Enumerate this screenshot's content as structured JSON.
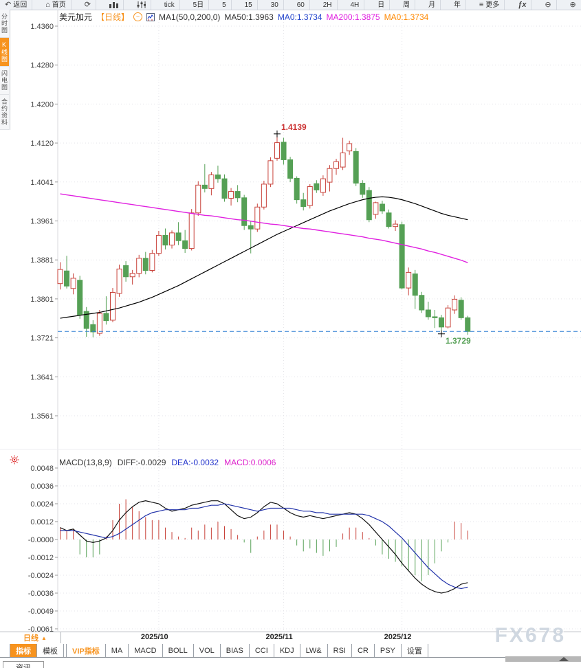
{
  "icons": {
    "back": "↶",
    "home": "⌂",
    "refresh": "⟳",
    "more": "≡",
    "fx": "ƒx",
    "zoom_out": "⊖",
    "zoom_in": "⊕",
    "collapse": "⊖",
    "period_arrow": "▲"
  },
  "toolbar": {
    "back": "返回",
    "home": "首页",
    "tick": "tick",
    "periods": [
      "5日",
      "5",
      "15",
      "30",
      "60",
      "2H",
      "4H",
      "日",
      "周",
      "月",
      "年"
    ],
    "more": "更多"
  },
  "sidebar": {
    "items": [
      {
        "label": "分时图",
        "active": false
      },
      {
        "label": "K线图",
        "active": true
      },
      {
        "label": "闪电图",
        "active": false
      },
      {
        "label": "合约资料",
        "active": false
      }
    ]
  },
  "main_header": {
    "symbol": "美元加元",
    "period_tag": "【日线】",
    "ma_config": "MA1(50,0,200,0)",
    "ma50": "MA50:1.3963",
    "ma0_blue": "MA0:1.3734",
    "ma200": "MA200:1.3875",
    "ma0_orange": "MA0:1.3734"
  },
  "macd_header": {
    "config": "MACD(13,8,9)",
    "diff": "DIFF:-0.0029",
    "dea": "DEA:-0.0032",
    "macd": "MACD:0.0006"
  },
  "bottom": {
    "period_button": "日线",
    "tabs": [
      {
        "label": "指标",
        "state": "active"
      },
      {
        "label": "模板",
        "state": ""
      },
      {
        "label": "VIP指标",
        "state": "vip"
      },
      {
        "label": "MA",
        "state": ""
      },
      {
        "label": "MACD",
        "state": ""
      },
      {
        "label": "BOLL",
        "state": ""
      },
      {
        "label": "VOL",
        "state": ""
      },
      {
        "label": "BIAS",
        "state": ""
      },
      {
        "label": "CCI",
        "state": ""
      },
      {
        "label": "KDJ",
        "state": ""
      },
      {
        "label": "LW&",
        "state": ""
      },
      {
        "label": "RSI",
        "state": ""
      },
      {
        "label": "CR",
        "state": ""
      },
      {
        "label": "PSY",
        "state": ""
      },
      {
        "label": "设置",
        "state": ""
      }
    ],
    "news_tab": "资讯",
    "watermark": "FX678"
  },
  "colors": {
    "accent": "#f7931e",
    "up": "#c8423a",
    "down": "#55a055",
    "ma50": "#000000",
    "ma200": "#e020e0",
    "diff": "#111111",
    "dea": "#2233aa",
    "price_line": "#2f7fd4",
    "grid": "#e3e3e8",
    "axis_text": "#444444",
    "high_label": "#cc3333",
    "low_label": "#55a055"
  },
  "chart_data": [
    {
      "type": "candlestick",
      "title": "美元加元 日线",
      "ylim": [
        1.3561,
        1.436
      ],
      "y_ticks": [
        "1.4360",
        "1.4280",
        "1.4200",
        "1.4120",
        "1.4041",
        "1.3961",
        "1.3881",
        "1.3801",
        "1.3721",
        "1.3641",
        "1.3561"
      ],
      "x_labels": [
        {
          "label": "2025/10",
          "index": 15
        },
        {
          "label": "2025/11",
          "index": 34
        },
        {
          "label": "2025/12",
          "index": 52
        }
      ],
      "last_price": 1.3734,
      "high_annotation": {
        "index": 33,
        "price": 1.4139,
        "label": "1.4139"
      },
      "low_annotation": {
        "index": 58,
        "price": 1.3729,
        "label": "1.3729"
      },
      "candles": [
        [
          1.3832,
          1.3876,
          1.382,
          1.3861
        ],
        [
          1.3858,
          1.3889,
          1.3822,
          1.3827
        ],
        [
          1.3822,
          1.3853,
          1.381,
          1.3843
        ],
        [
          1.3839,
          1.3848,
          1.376,
          1.3768
        ],
        [
          1.3775,
          1.3784,
          1.3723,
          1.374
        ],
        [
          1.3748,
          1.3757,
          1.3722,
          1.3733
        ],
        [
          1.373,
          1.3778,
          1.3725,
          1.3771
        ],
        [
          1.3771,
          1.3806,
          1.3748,
          1.3756
        ],
        [
          1.3757,
          1.3823,
          1.3753,
          1.3814
        ],
        [
          1.3812,
          1.3871,
          1.3805,
          1.3862
        ],
        [
          1.3869,
          1.3878,
          1.3836,
          1.3846
        ],
        [
          1.3846,
          1.386,
          1.383,
          1.3853
        ],
        [
          1.3853,
          1.3891,
          1.3845,
          1.3884
        ],
        [
          1.3884,
          1.3897,
          1.3851,
          1.3859
        ],
        [
          1.3859,
          1.3901,
          1.3855,
          1.3894
        ],
        [
          1.3894,
          1.394,
          1.3889,
          1.3931
        ],
        [
          1.3931,
          1.3945,
          1.3902,
          1.3911
        ],
        [
          1.3911,
          1.3941,
          1.3904,
          1.3936
        ],
        [
          1.3936,
          1.3958,
          1.3911,
          1.392
        ],
        [
          1.392,
          1.3942,
          1.3895,
          1.3904
        ],
        [
          1.3904,
          1.3985,
          1.39,
          1.3977
        ],
        [
          1.3977,
          1.4042,
          1.3971,
          1.4034
        ],
        [
          1.4034,
          1.4077,
          1.4019,
          1.4027
        ],
        [
          1.4027,
          1.4061,
          1.4013,
          1.4055
        ],
        [
          1.4055,
          1.4074,
          1.4039,
          1.4047
        ],
        [
          1.4047,
          1.4056,
          1.4,
          1.4007
        ],
        [
          1.4007,
          1.4028,
          1.3992,
          1.4021
        ],
        [
          1.4021,
          1.4034,
          1.3999,
          1.4008
        ],
        [
          1.4008,
          1.4014,
          1.3942,
          1.3951
        ],
        [
          1.3951,
          1.3961,
          1.3894,
          1.3944
        ],
        [
          1.3944,
          1.3996,
          1.3938,
          1.3989
        ],
        [
          1.3989,
          1.4043,
          1.3984,
          1.4036
        ],
        [
          1.4036,
          1.4091,
          1.403,
          1.4084
        ],
        [
          1.4089,
          1.4139,
          1.4084,
          1.4121
        ],
        [
          1.4122,
          1.4131,
          1.4076,
          1.4086
        ],
        [
          1.4086,
          1.4092,
          1.404,
          1.4048
        ],
        [
          1.4048,
          1.4052,
          1.3996,
          1.4004
        ],
        [
          1.4004,
          1.4018,
          1.3982,
          1.399
        ],
        [
          1.3992,
          1.4036,
          1.3986,
          1.4031
        ],
        [
          1.4037,
          1.4044,
          1.4018,
          1.4024
        ],
        [
          1.4019,
          1.4054,
          1.4012,
          1.4047
        ],
        [
          1.404,
          1.4075,
          1.4021,
          1.4068
        ],
        [
          1.4068,
          1.4088,
          1.4055,
          1.4082
        ],
        [
          1.4071,
          1.4131,
          1.4065,
          1.41
        ],
        [
          1.4104,
          1.4125,
          1.4096,
          1.4119
        ],
        [
          1.4103,
          1.411,
          1.4032,
          1.4038
        ],
        [
          1.4038,
          1.4044,
          1.4008,
          1.4015
        ],
        [
          1.4023,
          1.403,
          1.3958,
          1.3963
        ],
        [
          1.3974,
          1.4,
          1.3965,
          1.3998
        ],
        [
          1.3995,
          1.4002,
          1.3975,
          1.3981
        ],
        [
          1.3977,
          1.3984,
          1.3945,
          1.3949
        ],
        [
          1.3949,
          1.3962,
          1.394,
          1.3954
        ],
        [
          1.3953,
          1.3959,
          1.382,
          1.3823
        ],
        [
          1.3823,
          1.3865,
          1.3808,
          1.3855
        ],
        [
          1.3852,
          1.386,
          1.378,
          1.3808
        ],
        [
          1.3808,
          1.3815,
          1.3772,
          1.3778
        ],
        [
          1.3778,
          1.3795,
          1.3758,
          1.3764
        ],
        [
          1.3764,
          1.3778,
          1.3741,
          1.3762
        ],
        [
          1.3762,
          1.3768,
          1.3729,
          1.3743
        ],
        [
          1.3743,
          1.3788,
          1.374,
          1.3782
        ],
        [
          1.3778,
          1.3808,
          1.377,
          1.38
        ],
        [
          1.3798,
          1.3804,
          1.3758,
          1.3762
        ],
        [
          1.3762,
          1.3766,
          1.3727,
          1.3734
        ]
      ],
      "ma50": [
        1.3761,
        1.3763,
        1.3765,
        1.3767,
        1.3769,
        1.3771,
        1.3773,
        1.3776,
        1.3779,
        1.3782,
        1.3786,
        1.379,
        1.3794,
        1.3799,
        1.3804,
        1.381,
        1.3816,
        1.3822,
        1.3828,
        1.3835,
        1.3842,
        1.3849,
        1.3856,
        1.3863,
        1.387,
        1.3877,
        1.3884,
        1.3891,
        1.3898,
        1.3905,
        1.3912,
        1.3919,
        1.3926,
        1.3933,
        1.3939,
        1.3945,
        1.3951,
        1.3957,
        1.3963,
        1.3969,
        1.3975,
        1.3981,
        1.3986,
        1.3991,
        1.3996,
        1.4,
        1.4004,
        1.4007,
        1.4009,
        1.401,
        1.4009,
        1.4007,
        1.4004,
        1.4,
        1.3996,
        1.3991,
        1.3986,
        1.3981,
        1.3976,
        1.3972,
        1.3969,
        1.3966,
        1.3963
      ],
      "ma200": [
        1.4016,
        1.4014,
        1.4012,
        1.401,
        1.4008,
        1.4006,
        1.4004,
        1.4002,
        1.4,
        1.3998,
        1.3996,
        1.3994,
        1.3992,
        1.399,
        1.3988,
        1.3986,
        1.3984,
        1.3982,
        1.398,
        1.3978,
        1.3976,
        1.3974,
        1.3972,
        1.3971,
        1.3969,
        1.3967,
        1.3965,
        1.3963,
        1.3962,
        1.396,
        1.3958,
        1.3956,
        1.3954,
        1.3953,
        1.3951,
        1.3949,
        1.3947,
        1.3945,
        1.3944,
        1.3942,
        1.394,
        1.3938,
        1.3936,
        1.3934,
        1.3932,
        1.393,
        1.3928,
        1.3925,
        1.3923,
        1.3921,
        1.3918,
        1.3915,
        1.3912,
        1.3909,
        1.3906,
        1.3903,
        1.3899,
        1.3896,
        1.3892,
        1.3888,
        1.3884,
        1.388,
        1.3875
      ]
    },
    {
      "type": "macd",
      "params": "13,8,9",
      "y_ticks": [
        "0.0048",
        "0.0036",
        "0.0024",
        "0.0012",
        "-0.0000",
        "-0.0012",
        "-0.0024",
        "-0.0036",
        "-0.0049",
        "-0.0061"
      ],
      "hist": [
        0.0008,
        0.0006,
        0.0007,
        -0.001,
        -0.0012,
        -0.0012,
        -0.001,
        0.0002,
        0.0013,
        0.0024,
        0.0027,
        0.0022,
        0.0019,
        0.0015,
        0.0013,
        0.0013,
        0.0008,
        0.0005,
        0.0002,
        0.0001,
        0.0008,
        0.0006,
        0.001,
        0.0008,
        0.0012,
        0.0009,
        0.0007,
        0.0003,
        -0.0002,
        -0.0009,
        0.0002,
        0.0006,
        0.001,
        0.001,
        0.0006,
        0.0002,
        -0.0004,
        -0.0008,
        -0.0006,
        -0.0009,
        -0.0011,
        -0.0008,
        -0.0005,
        0.0004,
        0.0008,
        0.0008,
        0.0005,
        0.0001,
        -0.0004,
        -0.001,
        -0.0013,
        -0.0015,
        -0.0018,
        -0.0021,
        -0.0024,
        -0.0028,
        -0.0024,
        -0.0016,
        -0.0008,
        -0.0002,
        0.0012,
        0.0011,
        0.0006
      ],
      "diff": [
        0.0008,
        0.0006,
        0.0007,
        0.0003,
        -0.0001,
        -0.0002,
        -0.0001,
        0.0001,
        0.0006,
        0.0013,
        0.0018,
        0.0022,
        0.0025,
        0.0026,
        0.0025,
        0.0024,
        0.0021,
        0.0019,
        0.002,
        0.0021,
        0.0023,
        0.0024,
        0.0025,
        0.0026,
        0.0026,
        0.0024,
        0.002,
        0.0016,
        0.0014,
        0.0015,
        0.0018,
        0.0022,
        0.0025,
        0.0024,
        0.0021,
        0.0018,
        0.0016,
        0.0015,
        0.0016,
        0.0015,
        0.0014,
        0.0015,
        0.0016,
        0.0017,
        0.0018,
        0.0017,
        0.0014,
        0.001,
        0.0005,
        0.0,
        -0.0005,
        -0.001,
        -0.0016,
        -0.0021,
        -0.0026,
        -0.003,
        -0.0033,
        -0.0035,
        -0.0036,
        -0.0035,
        -0.0033,
        -0.003,
        -0.0029
      ],
      "dea": [
        0.0006,
        0.0006,
        0.0006,
        0.0005,
        0.0004,
        0.0003,
        0.0002,
        0.0001,
        0.0002,
        0.0004,
        0.0007,
        0.001,
        0.0013,
        0.0016,
        0.0018,
        0.0019,
        0.002,
        0.002,
        0.002,
        0.002,
        0.0021,
        0.0021,
        0.0022,
        0.0023,
        0.0023,
        0.0024,
        0.0023,
        0.0022,
        0.0021,
        0.002,
        0.0019,
        0.002,
        0.0021,
        0.0021,
        0.0021,
        0.0021,
        0.002,
        0.0019,
        0.0019,
        0.0018,
        0.0018,
        0.0017,
        0.0017,
        0.0017,
        0.0017,
        0.0017,
        0.0017,
        0.0016,
        0.0014,
        0.0012,
        0.0009,
        0.0005,
        0.0001,
        -0.0004,
        -0.0009,
        -0.0014,
        -0.0019,
        -0.0023,
        -0.0027,
        -0.003,
        -0.0032,
        -0.0033,
        -0.0032
      ]
    }
  ]
}
